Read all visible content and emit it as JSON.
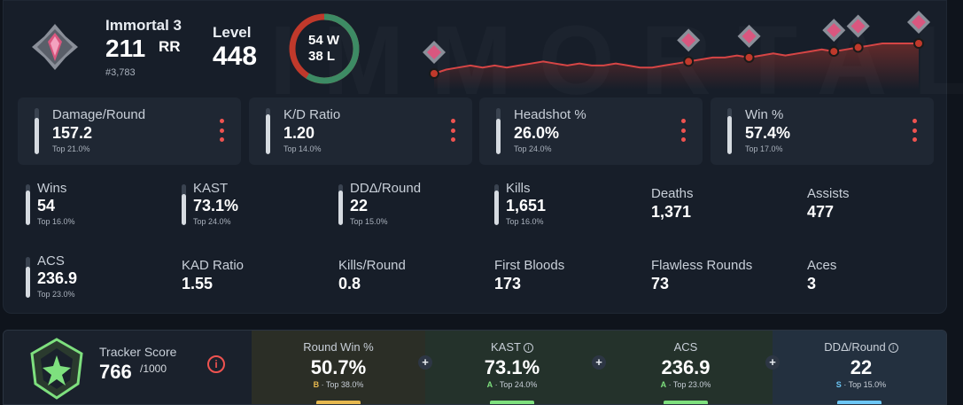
{
  "rank": {
    "name": "Immortal 3",
    "rr": "211",
    "rr_unit": "RR",
    "position": "#3,783",
    "icon": "immortal-rank-icon"
  },
  "level": {
    "label": "Level",
    "value": "448"
  },
  "record": {
    "wins": "54 W",
    "losses": "38 L",
    "win_fraction": 0.587
  },
  "rank_history": {
    "values": [
      196,
      198,
      199,
      200,
      199,
      200,
      199,
      200,
      201,
      202,
      201,
      200,
      201,
      200,
      200,
      201,
      200,
      199,
      199,
      200,
      201,
      202,
      203,
      204,
      204,
      205,
      204,
      205,
      206,
      205,
      206,
      207,
      208,
      207,
      208,
      209,
      210,
      211,
      211,
      211,
      211
    ],
    "marked_points": [
      0,
      21,
      26,
      33,
      35,
      40
    ]
  },
  "cards": [
    {
      "label": "Damage/Round",
      "value": "157.2",
      "percentile": "Top 21.0%",
      "bar": 0.79
    },
    {
      "label": "K/D Ratio",
      "value": "1.20",
      "percentile": "Top 14.0%",
      "bar": 0.86
    },
    {
      "label": "Headshot %",
      "value": "26.0%",
      "percentile": "Top 24.0%",
      "bar": 0.76
    },
    {
      "label": "Win %",
      "value": "57.4%",
      "percentile": "Top 17.0%",
      "bar": 0.83
    }
  ],
  "stats": [
    {
      "label": "Wins",
      "value": "54",
      "percentile": "Top 16.0%",
      "bar": 0.84
    },
    {
      "label": "KAST",
      "value": "73.1%",
      "percentile": "Top 24.0%",
      "bar": 0.76
    },
    {
      "label": "DDΔ/Round",
      "value": "22",
      "percentile": "Top 15.0%",
      "bar": 0.85
    },
    {
      "label": "Kills",
      "value": "1,651",
      "percentile": "Top 16.0%",
      "bar": 0.84
    },
    {
      "label": "Deaths",
      "value": "1,371"
    },
    {
      "label": "Assists",
      "value": "477"
    },
    {
      "label": "ACS",
      "value": "236.9",
      "percentile": "Top 23.0%",
      "bar": 0.77
    },
    {
      "label": "KAD Ratio",
      "value": "1.55"
    },
    {
      "label": "Kills/Round",
      "value": "0.8"
    },
    {
      "label": "First Bloods",
      "value": "173"
    },
    {
      "label": "Flawless Rounds",
      "value": "73"
    },
    {
      "label": "Aces",
      "value": "3"
    }
  ],
  "tracker": {
    "label": "Tracker Score",
    "value": "766",
    "max": "/1000",
    "info_icon": "info-icon",
    "segments": [
      {
        "label": "Round Win %",
        "value": "50.7%",
        "grade": "B",
        "percentile": "Top 38.0%",
        "color": "#e6b84f",
        "has_info": false
      },
      {
        "label": "KAST",
        "value": "73.1%",
        "grade": "A",
        "percentile": "Top 24.0%",
        "color": "#7ee07e",
        "has_info": true
      },
      {
        "label": "ACS",
        "value": "236.9",
        "grade": "A",
        "percentile": "Top 23.0%",
        "color": "#7ee07e",
        "has_info": false
      },
      {
        "label": "DDΔ/Round",
        "value": "22",
        "grade": "S",
        "percentile": "Top 15.0%",
        "color": "#6cc6f5",
        "has_info": true
      }
    ]
  },
  "colors": {
    "accent_red": "#ef5350",
    "win_green": "#3d8b64",
    "loss_red": "#c0392b",
    "rank_pink": "#d9577f"
  }
}
